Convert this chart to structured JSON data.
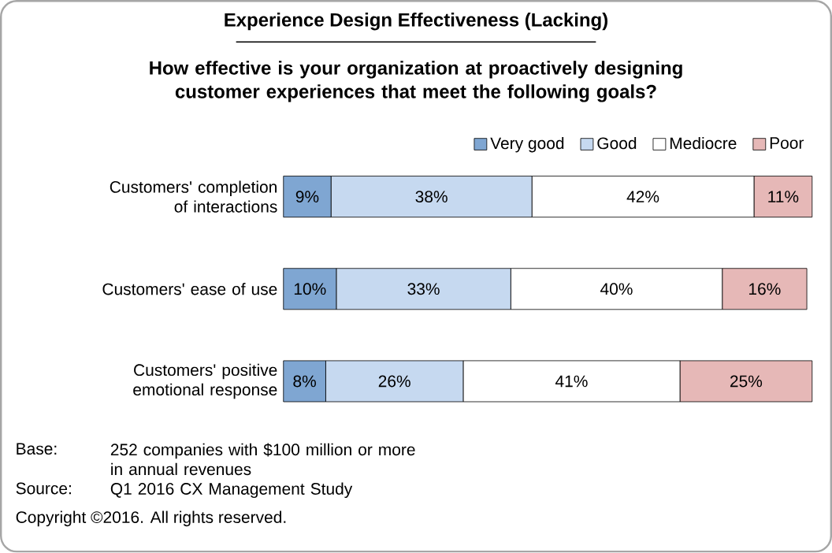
{
  "chart_data": {
    "type": "bar",
    "orientation": "horizontal",
    "stacked": true,
    "title": "Experience Design Effectiveness (Lacking)",
    "subtitle": "How effective is your organization at proactively designing customer experiences that meet the following goals?",
    "categories": [
      "Customers' completion of interactions",
      "Customers' ease of use",
      "Customers' positive emotional response"
    ],
    "series": [
      {
        "name": "Very good",
        "color": "#7fa6d2",
        "values": [
          9,
          10,
          8
        ],
        "value_labels": [
          "9%",
          "10%",
          "8%"
        ]
      },
      {
        "name": "Good",
        "color": "#c6d9f0",
        "values": [
          38,
          33,
          26
        ],
        "value_labels": [
          "38%",
          "33%",
          "26%"
        ]
      },
      {
        "name": "Mediocre",
        "color": "#ffffff",
        "values": [
          42,
          40,
          41
        ],
        "value_labels": [
          "42%",
          "40%",
          "41%"
        ]
      },
      {
        "name": "Poor",
        "color": "#e6b8b7",
        "values": [
          11,
          16,
          25
        ],
        "value_labels": [
          "11%",
          "16%",
          "25%"
        ]
      }
    ],
    "xlim": [
      0,
      100
    ],
    "tick_labels": "y",
    "legend": "top",
    "annotations": [
      "Base:",
      "252 companies with $100 million or more in annual revenues",
      "Source:",
      "Q1 2016 CX Management Study",
      "Copyright ©2016. All rights reserved."
    ]
  }
}
